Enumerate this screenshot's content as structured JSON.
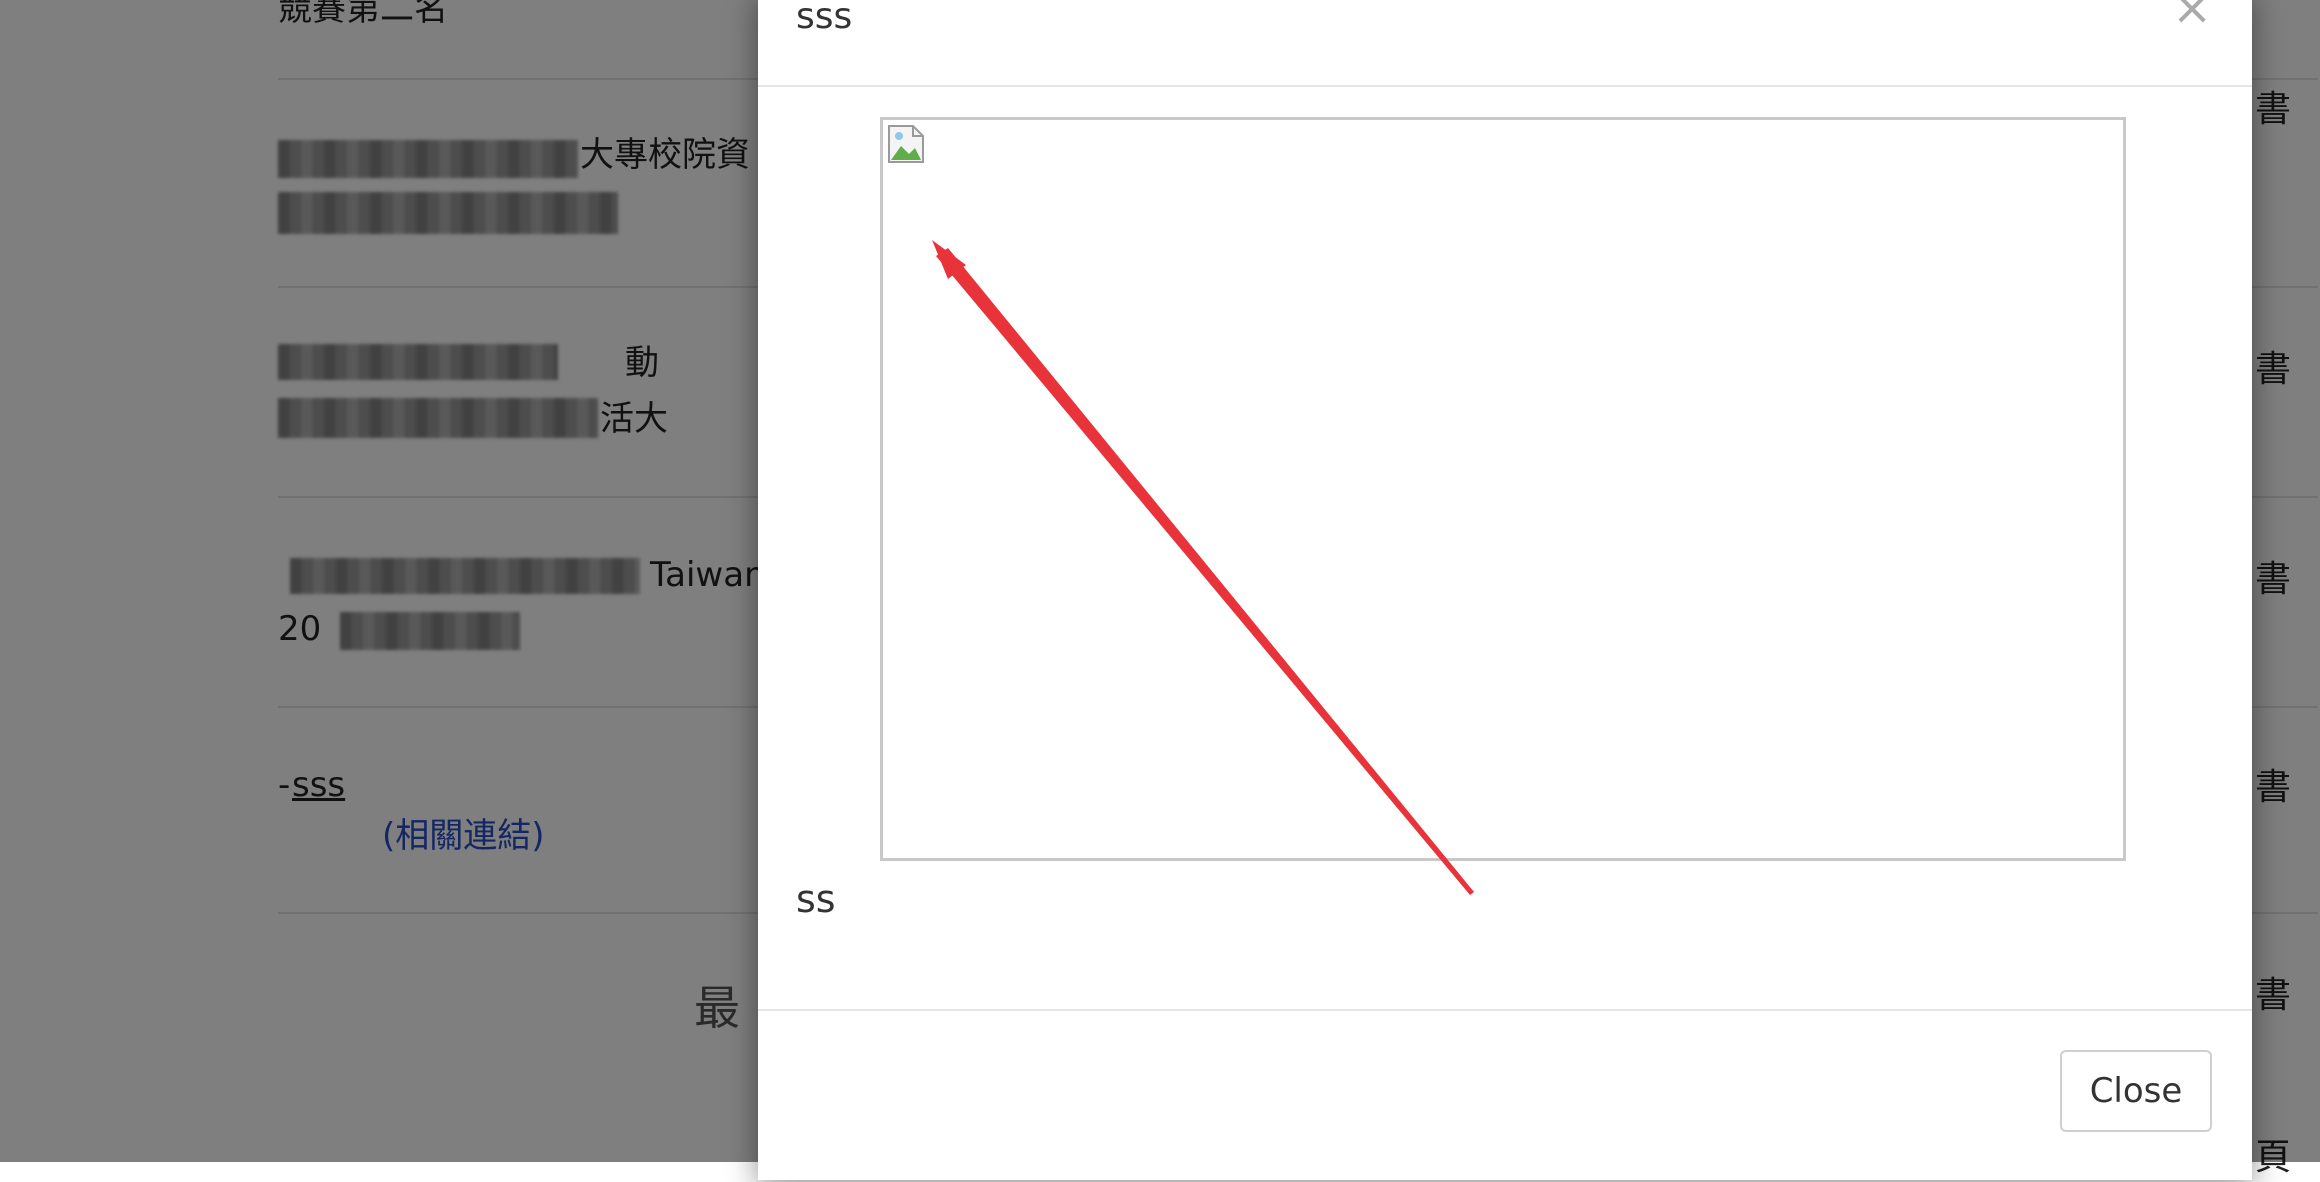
{
  "page": {
    "entries": [
      {
        "text": "競賽第二名"
      },
      {
        "text": "大專校院資"
      },
      {
        "text": "動"
      },
      {
        "text": "活大"
      },
      {
        "text": "Taiwan"
      },
      {
        "text": "20"
      },
      {
        "text": "-"
      },
      {
        "text": "sss"
      }
    ],
    "related_link": "(相關連結)",
    "right_labels": [
      "書",
      "書",
      "書",
      "書",
      "書",
      "頁"
    ],
    "footer_fragment": "最"
  },
  "modal": {
    "title": "sss",
    "close_icon": "×",
    "image_icon": "broken-image-icon",
    "caption": "ss",
    "close_button_label": "Close"
  },
  "annotation": {
    "type": "arrow",
    "color": "#e8333a"
  }
}
